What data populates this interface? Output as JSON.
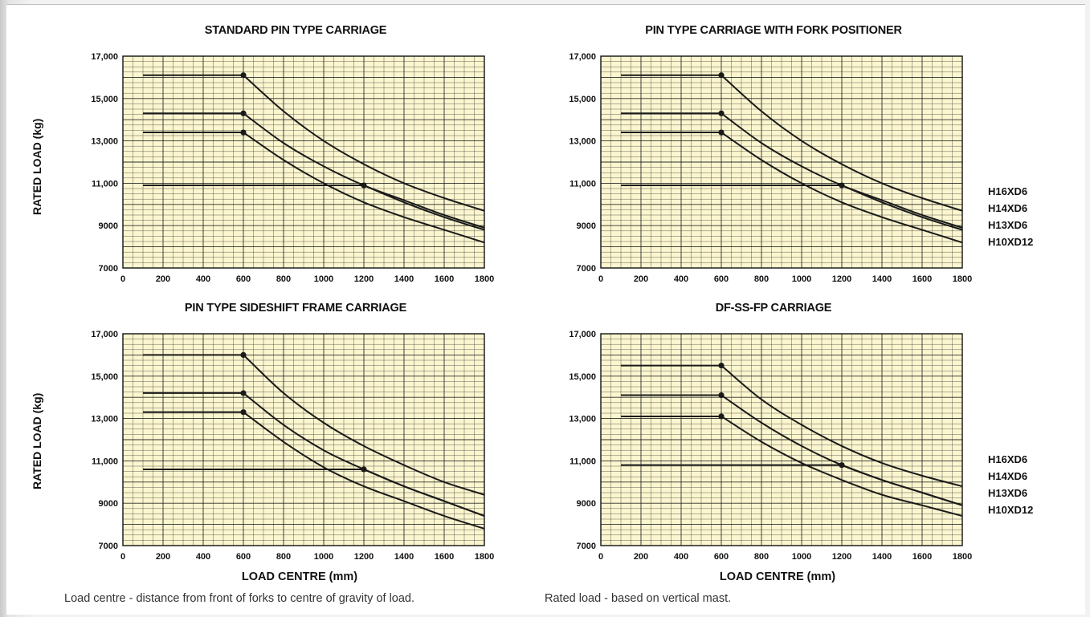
{
  "ylabels": [
    "RATED LOAD (kg)",
    "RATED LOAD (kg)"
  ],
  "xlabels": [
    "LOAD CENTRE (mm)",
    "LOAD CENTRE (mm)"
  ],
  "legends": [
    [
      "H16XD6",
      "H14XD6",
      "H13XD6",
      "H10XD12"
    ],
    [
      "H16XD6",
      "H14XD6",
      "H13XD6",
      "H10XD12"
    ]
  ],
  "notes": [
    "Load centre - distance from front of forks to centre of gravity of load.",
    "Rated load - based on vertical mast."
  ],
  "colors": {
    "plot_bg": "#fbf6cf",
    "grid": "#1a1a1a",
    "curve": "#1a1a1a"
  },
  "chart_data": [
    {
      "type": "line",
      "title": "STANDARD PIN TYPE CARRIAGE",
      "xlabel": "LOAD CENTRE (mm)",
      "ylabel": "RATED LOAD (kg)",
      "xlim": [
        0,
        1800
      ],
      "ylim": [
        7000,
        17000
      ],
      "xticks": [
        "0",
        "200",
        "400",
        "600",
        "800",
        "1000",
        "1200",
        "1400",
        "1600",
        "1800"
      ],
      "yticks": [
        "7000",
        "9000",
        "11,000",
        "13,000",
        "15,000",
        "17,000"
      ],
      "grid": true,
      "series": [
        {
          "name": "H16XD6",
          "x": [
            100,
            600,
            800,
            1000,
            1200,
            1400,
            1600,
            1800
          ],
          "y": [
            16100,
            16100,
            14400,
            13000,
            11900,
            11000,
            10300,
            9700
          ]
        },
        {
          "name": "H14XD6",
          "x": [
            100,
            600,
            800,
            1000,
            1200,
            1400,
            1600,
            1800
          ],
          "y": [
            14300,
            14300,
            12900,
            11800,
            10900,
            10200,
            9500,
            8900
          ]
        },
        {
          "name": "H13XD6",
          "x": [
            100,
            600,
            800,
            1000,
            1200,
            1400,
            1600,
            1800
          ],
          "y": [
            13400,
            13400,
            12100,
            11000,
            10100,
            9400,
            8800,
            8200
          ]
        },
        {
          "name": "H10XD12",
          "x": [
            100,
            1200,
            1400,
            1600,
            1800
          ],
          "y": [
            10900,
            10900,
            10100,
            9400,
            8800
          ]
        }
      ]
    },
    {
      "type": "line",
      "title": "PIN TYPE CARRIAGE WITH FORK POSITIONER",
      "xlabel": "",
      "ylabel": "",
      "xlim": [
        0,
        1800
      ],
      "ylim": [
        7000,
        17000
      ],
      "xticks": [
        "0",
        "200",
        "400",
        "600",
        "800",
        "1000",
        "1200",
        "1400",
        "1600",
        "1800"
      ],
      "yticks": [
        "7000",
        "9000",
        "11,000",
        "13,000",
        "15,000",
        "17,000"
      ],
      "grid": true,
      "series": [
        {
          "name": "H16XD6",
          "x": [
            100,
            600,
            800,
            1000,
            1200,
            1400,
            1600,
            1800
          ],
          "y": [
            16100,
            16100,
            14400,
            13000,
            11900,
            11000,
            10300,
            9700
          ]
        },
        {
          "name": "H14XD6",
          "x": [
            100,
            600,
            800,
            1000,
            1200,
            1400,
            1600,
            1800
          ],
          "y": [
            14300,
            14300,
            12900,
            11800,
            10900,
            10200,
            9500,
            8900
          ]
        },
        {
          "name": "H13XD6",
          "x": [
            100,
            600,
            800,
            1000,
            1200,
            1400,
            1600,
            1800
          ],
          "y": [
            13400,
            13400,
            12100,
            11000,
            10100,
            9400,
            8800,
            8200
          ]
        },
        {
          "name": "H10XD12",
          "x": [
            100,
            1200,
            1400,
            1600,
            1800
          ],
          "y": [
            10900,
            10900,
            10100,
            9400,
            8800
          ]
        }
      ]
    },
    {
      "type": "line",
      "title": "PIN TYPE SIDESHIFT FRAME CARRIAGE",
      "xlabel": "LOAD CENTRE (mm)",
      "ylabel": "RATED LOAD (kg)",
      "xlim": [
        0,
        1800
      ],
      "ylim": [
        7000,
        17000
      ],
      "xticks": [
        "0",
        "200",
        "400",
        "600",
        "800",
        "1000",
        "1200",
        "1400",
        "1600",
        "1800"
      ],
      "yticks": [
        "7000",
        "9000",
        "11,000",
        "13,000",
        "15,000",
        "17,000"
      ],
      "grid": true,
      "series": [
        {
          "name": "H16XD6",
          "x": [
            100,
            600,
            800,
            1000,
            1200,
            1400,
            1600,
            1800
          ],
          "y": [
            16000,
            16000,
            14200,
            12800,
            11700,
            10800,
            10000,
            9400
          ]
        },
        {
          "name": "H14XD6",
          "x": [
            100,
            600,
            800,
            1000,
            1200,
            1400,
            1600,
            1800
          ],
          "y": [
            14200,
            14200,
            12700,
            11500,
            10600,
            9800,
            9100,
            8400
          ]
        },
        {
          "name": "H13XD6",
          "x": [
            100,
            600,
            800,
            1000,
            1200,
            1400,
            1600,
            1800
          ],
          "y": [
            13300,
            13300,
            11900,
            10700,
            9800,
            9100,
            8400,
            7800
          ]
        },
        {
          "name": "H10XD12",
          "x": [
            100,
            1200,
            1400,
            1600,
            1800
          ],
          "y": [
            10600,
            10600,
            9800,
            9100,
            8400
          ]
        }
      ]
    },
    {
      "type": "line",
      "title": "DF-SS-FP CARRIAGE",
      "xlabel": "",
      "ylabel": "",
      "xlim": [
        0,
        1800
      ],
      "ylim": [
        7000,
        17000
      ],
      "xticks": [
        "0",
        "200",
        "400",
        "600",
        "800",
        "1000",
        "1200",
        "1400",
        "1600",
        "1800"
      ],
      "yticks": [
        "7000",
        "9000",
        "11,000",
        "13,000",
        "15,000",
        "17,000"
      ],
      "grid": true,
      "series": [
        {
          "name": "H16XD6",
          "x": [
            100,
            600,
            800,
            1000,
            1200,
            1400,
            1600,
            1800
          ],
          "y": [
            15500,
            15500,
            13900,
            12700,
            11700,
            10900,
            10300,
            9800
          ]
        },
        {
          "name": "H14XD6",
          "x": [
            100,
            600,
            800,
            1000,
            1200,
            1400,
            1600,
            1800
          ],
          "y": [
            14100,
            14100,
            12800,
            11700,
            10800,
            10100,
            9500,
            8900
          ]
        },
        {
          "name": "H13XD6",
          "x": [
            100,
            600,
            800,
            1000,
            1200,
            1400,
            1600,
            1800
          ],
          "y": [
            13100,
            13100,
            11900,
            10900,
            10100,
            9400,
            8900,
            8400
          ]
        },
        {
          "name": "H10XD12",
          "x": [
            100,
            1200,
            1400,
            1600,
            1800
          ],
          "y": [
            10800,
            10800,
            10100,
            9500,
            8900
          ]
        }
      ]
    }
  ]
}
